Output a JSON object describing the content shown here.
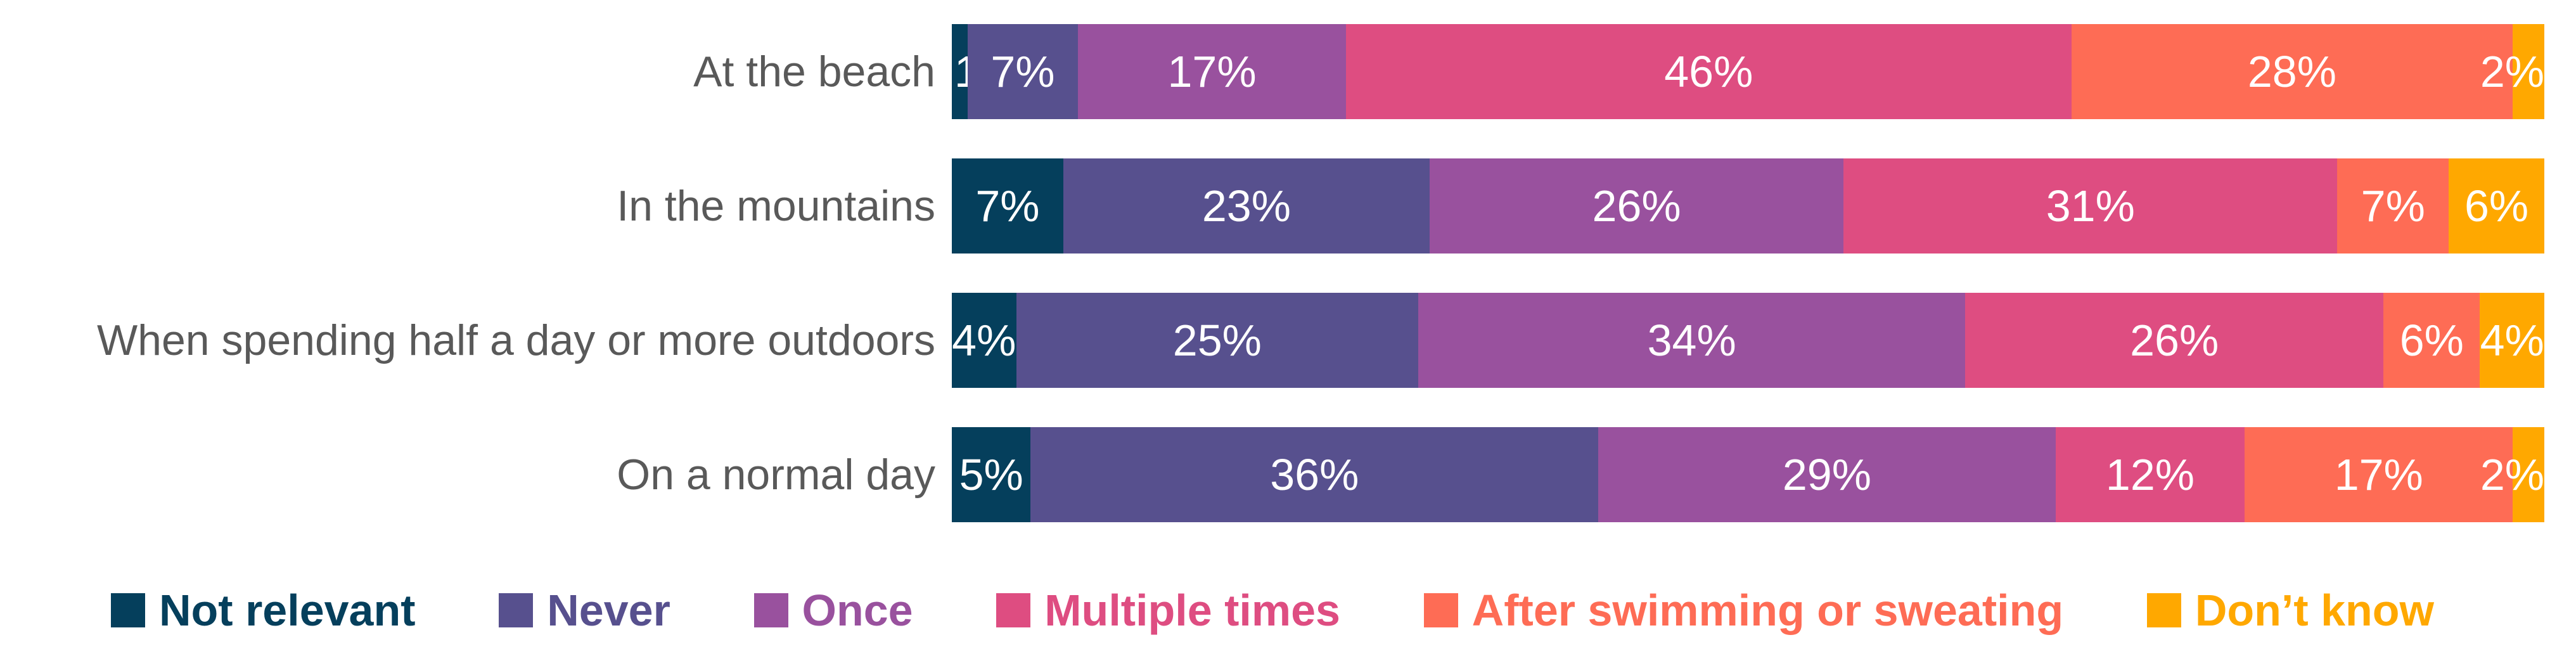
{
  "chart_data": {
    "type": "bar",
    "orientation": "horizontal-stacked",
    "unit": "%",
    "title": "",
    "xlabel": "",
    "ylabel": "",
    "xlim": [
      0,
      100
    ],
    "grid": false,
    "legend_position": "bottom",
    "value_labels": "inside segments, white percent text",
    "category_label_color": "#595959",
    "categories": [
      "At the beach",
      "In the mountains",
      "When spending half a day or more outdoors",
      "On a normal day"
    ],
    "series": [
      {
        "name": "Not relevant",
        "color": "#053F5C",
        "values": [
          1,
          7,
          4,
          5
        ]
      },
      {
        "name": "Never",
        "color": "#57508E",
        "values": [
          7,
          23,
          25,
          36
        ]
      },
      {
        "name": "Once",
        "color": "#99519E",
        "values": [
          17,
          26,
          34,
          29
        ]
      },
      {
        "name": "Multiple times",
        "color": "#DE4D81",
        "values": [
          46,
          31,
          26,
          12
        ]
      },
      {
        "name": "After swimming or sweating",
        "color": "#FE6C55",
        "values": [
          28,
          7,
          6,
          17
        ]
      },
      {
        "name": "Don’t know",
        "color": "#FFA800",
        "values": [
          2,
          6,
          4,
          2
        ]
      }
    ]
  }
}
